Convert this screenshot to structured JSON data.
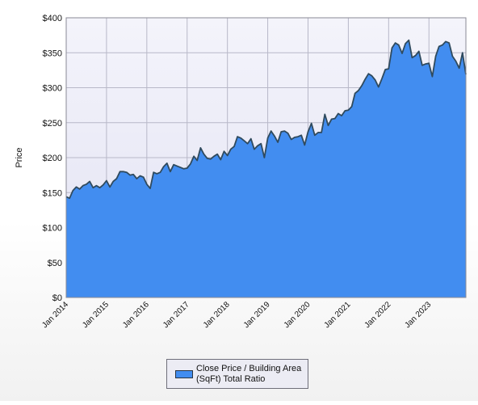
{
  "chart_data": {
    "type": "area",
    "title": "",
    "xlabel": "",
    "ylabel": "Price",
    "ylim": [
      0,
      400
    ],
    "y_ticks": [
      "$0",
      "$50",
      "$100",
      "$150",
      "$200",
      "$250",
      "$300",
      "$350",
      "$400"
    ],
    "x_ticks": [
      "Jan 2014",
      "Jan 2015",
      "Jan 2016",
      "Jan 2017",
      "Jan 2018",
      "Jan 2019",
      "Jan 2020",
      "Jan 2021",
      "Jan 2022",
      "Jan 2023"
    ],
    "grid": true,
    "legend_position": "bottom-center",
    "colors": {
      "fill": "#428df0",
      "line": "#2f4a5e",
      "plot_bg_top": "#f4f4fb",
      "plot_bg_bottom": "#e2e2f3"
    },
    "series": [
      {
        "name": "Close Price / Building Area (SqFt) Total Ratio",
        "x": [
          "2014-01",
          "2014-02",
          "2014-03",
          "2014-04",
          "2014-05",
          "2014-06",
          "2014-07",
          "2014-08",
          "2014-09",
          "2014-10",
          "2014-11",
          "2014-12",
          "2015-01",
          "2015-02",
          "2015-03",
          "2015-04",
          "2015-05",
          "2015-06",
          "2015-07",
          "2015-08",
          "2015-09",
          "2015-10",
          "2015-11",
          "2015-12",
          "2016-01",
          "2016-02",
          "2016-03",
          "2016-04",
          "2016-05",
          "2016-06",
          "2016-07",
          "2016-08",
          "2016-09",
          "2016-10",
          "2016-11",
          "2016-12",
          "2017-01",
          "2017-02",
          "2017-03",
          "2017-04",
          "2017-05",
          "2017-06",
          "2017-07",
          "2017-08",
          "2017-09",
          "2017-10",
          "2017-11",
          "2017-12",
          "2018-01",
          "2018-02",
          "2018-03",
          "2018-04",
          "2018-05",
          "2018-06",
          "2018-07",
          "2018-08",
          "2018-09",
          "2018-10",
          "2018-11",
          "2018-12",
          "2019-01",
          "2019-02",
          "2019-03",
          "2019-04",
          "2019-05",
          "2019-06",
          "2019-07",
          "2019-08",
          "2019-09",
          "2019-10",
          "2019-11",
          "2019-12",
          "2020-01",
          "2020-02",
          "2020-03",
          "2020-04",
          "2020-05",
          "2020-06",
          "2020-07",
          "2020-08",
          "2020-09",
          "2020-10",
          "2020-11",
          "2020-12",
          "2021-01",
          "2021-02",
          "2021-03",
          "2021-04",
          "2021-05",
          "2021-06",
          "2021-07",
          "2021-08",
          "2021-09",
          "2021-10",
          "2021-11",
          "2021-12",
          "2022-01",
          "2022-02",
          "2022-03",
          "2022-04",
          "2022-05",
          "2022-06",
          "2022-07",
          "2022-08",
          "2022-09",
          "2022-10",
          "2022-11",
          "2022-12",
          "2023-01",
          "2023-02",
          "2023-03",
          "2023-04",
          "2023-05",
          "2023-06",
          "2023-07",
          "2023-08",
          "2023-09",
          "2023-10",
          "2023-11",
          "2023-12"
        ],
        "values": [
          144,
          142,
          153,
          158,
          155,
          160,
          162,
          166,
          157,
          160,
          157,
          161,
          167,
          158,
          166,
          170,
          180,
          180,
          179,
          175,
          176,
          170,
          174,
          172,
          162,
          156,
          179,
          177,
          179,
          187,
          192,
          180,
          190,
          188,
          186,
          184,
          185,
          191,
          202,
          196,
          214,
          205,
          199,
          198,
          202,
          205,
          197,
          209,
          203,
          212,
          216,
          230,
          228,
          224,
          220,
          227,
          212,
          217,
          220,
          200,
          228,
          238,
          231,
          222,
          237,
          238,
          235,
          226,
          229,
          230,
          232,
          218,
          237,
          249,
          232,
          236,
          236,
          262,
          246,
          255,
          256,
          263,
          260,
          267,
          268,
          273,
          292,
          296,
          303,
          312,
          320,
          317,
          311,
          301,
          313,
          326,
          327,
          357,
          364,
          361,
          349,
          363,
          368,
          343,
          346,
          352,
          332,
          334,
          335,
          316,
          345,
          359,
          361,
          366,
          364,
          345,
          338,
          328,
          350,
          319
        ]
      }
    ]
  }
}
